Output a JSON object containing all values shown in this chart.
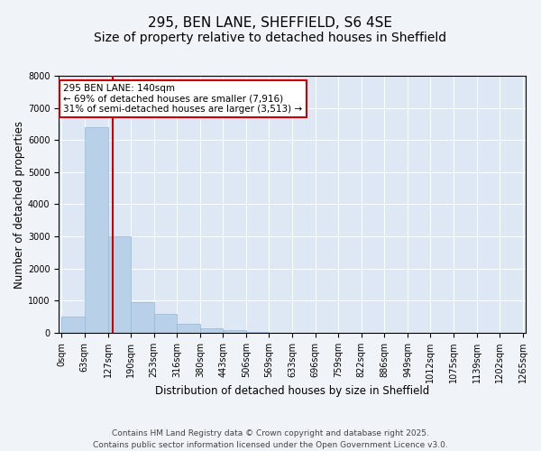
{
  "title_line1": "295, BEN LANE, SHEFFIELD, S6 4SE",
  "title_line2": "Size of property relative to detached houses in Sheffield",
  "xlabel": "Distribution of detached houses by size in Sheffield",
  "ylabel": "Number of detached properties",
  "bar_color": "#b8d0e8",
  "bar_edge_color": "#90b8d8",
  "vline_color": "#cc0000",
  "vline_x": 140,
  "annotation_text": "295 BEN LANE: 140sqm\n← 69% of detached houses are smaller (7,916)\n31% of semi-detached houses are larger (3,513) →",
  "annotation_box_color": "#cc0000",
  "footer_line1": "Contains HM Land Registry data © Crown copyright and database right 2025.",
  "footer_line2": "Contains public sector information licensed under the Open Government Licence v3.0.",
  "ylim": [
    0,
    8000
  ],
  "yticks": [
    0,
    1000,
    2000,
    3000,
    4000,
    5000,
    6000,
    7000,
    8000
  ],
  "bin_edges": [
    0,
    63,
    127,
    190,
    253,
    316,
    380,
    443,
    506,
    569,
    633,
    696,
    759,
    822,
    886,
    949,
    1012,
    1075,
    1139,
    1202,
    1265
  ],
  "bar_heights": [
    500,
    6400,
    3000,
    950,
    580,
    290,
    130,
    75,
    20,
    0,
    0,
    0,
    0,
    0,
    0,
    0,
    0,
    0,
    0,
    0
  ],
  "background_color": "#dde8f4",
  "fig_bg_color": "#f0f4f8",
  "title_fontsize": 11,
  "subtitle_fontsize": 10,
  "label_fontsize": 8.5,
  "tick_fontsize": 7,
  "ann_fontsize": 7.5,
  "footer_fontsize": 6.5
}
